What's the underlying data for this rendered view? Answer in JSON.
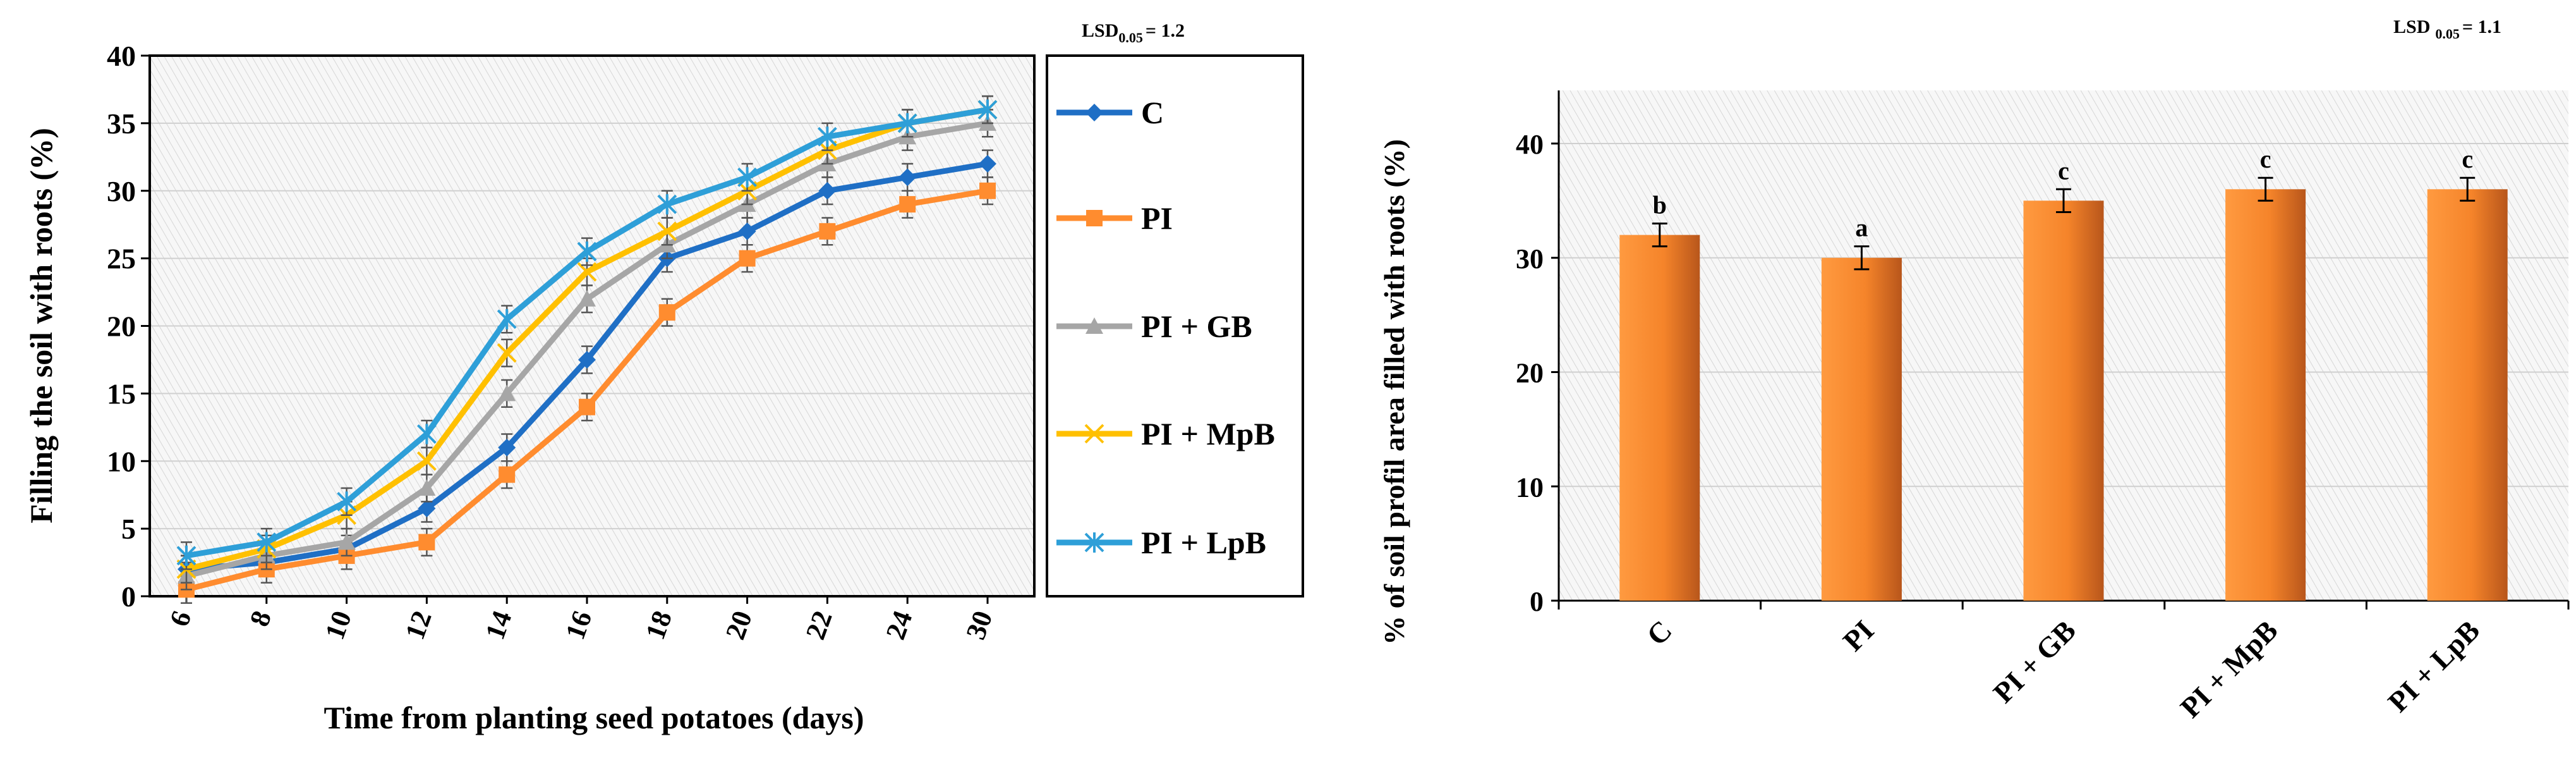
{
  "chart_data": [
    {
      "type": "line",
      "title": "",
      "xlabel": "Time from planting seed potatoes (days)",
      "ylabel": "Filling the soil with roots (%)",
      "ylim": [
        0,
        40
      ],
      "yticks": [
        0,
        5,
        10,
        15,
        20,
        25,
        30,
        35,
        40
      ],
      "categories": [
        "6",
        "8",
        "10",
        "12",
        "14",
        "16",
        "18",
        "20",
        "22",
        "24",
        "30"
      ],
      "lsd_label": "LSD",
      "lsd_sub": "0.05",
      "lsd_value": "= 1.2",
      "series": [
        {
          "name": "C",
          "color": "#1f6fc5",
          "marker": "diamond",
          "values": [
            2,
            2.5,
            3.5,
            6.5,
            11,
            17.5,
            25,
            27,
            30,
            31,
            32
          ]
        },
        {
          "name": "PI",
          "color": "#ff8c2f",
          "marker": "square",
          "values": [
            0.5,
            2,
            3,
            4,
            9,
            14,
            21,
            25,
            27,
            29,
            30
          ]
        },
        {
          "name": "PI + GB",
          "color": "#a6a6a6",
          "marker": "triangle",
          "values": [
            1.5,
            3,
            4,
            8,
            15,
            22,
            26,
            29,
            32,
            34,
            35
          ]
        },
        {
          "name": "PI + MpB",
          "color": "#ffc000",
          "marker": "x",
          "values": [
            2,
            3.5,
            6,
            10,
            18,
            24,
            27,
            30,
            33,
            35,
            36
          ]
        },
        {
          "name": "PI + LpB",
          "color": "#2e9fd8",
          "marker": "star",
          "values": [
            3,
            4,
            7,
            12,
            20.5,
            25.5,
            29,
            31,
            34,
            35,
            36
          ]
        }
      ]
    },
    {
      "type": "bar",
      "title": "",
      "xlabel": "",
      "ylabel": "% of soil profil area filled with roots  (%)",
      "ylim": [
        0,
        45
      ],
      "yticks": [
        0,
        10,
        20,
        30,
        40
      ],
      "categories": [
        "C",
        "PI",
        "PI + GB",
        "PI + MpB",
        "PI + LpB"
      ],
      "values": [
        32,
        30,
        35,
        36,
        36
      ],
      "errors": [
        1,
        1,
        1,
        1,
        1
      ],
      "letters": [
        "b",
        "a",
        "c",
        "c",
        "c"
      ],
      "lsd_label": "LSD",
      "lsd_sub": "0.05",
      "lsd_value": "= 1.1",
      "bar_color": "#f5842a"
    }
  ]
}
